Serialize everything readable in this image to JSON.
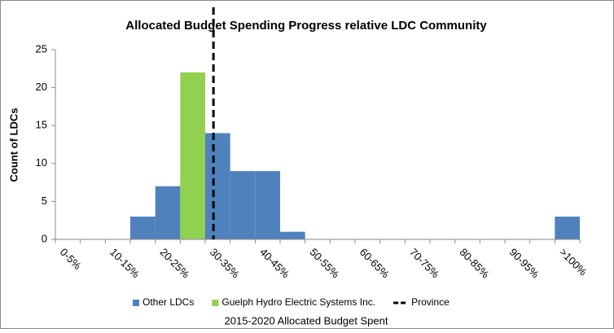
{
  "chart_data": {
    "type": "bar",
    "title": "Allocated Budget Spending Progress relative LDC Community",
    "x_label": "2015-2020 Allocated Budget Spent",
    "y_label": "Count of LDCs",
    "categories": [
      "0-5%",
      null,
      "10-15%",
      null,
      "20-25%",
      null,
      "30-35%",
      null,
      "40-45%",
      null,
      "50-55%",
      null,
      "60-65%",
      null,
      "70-75%",
      null,
      "80-85%",
      null,
      "90-95%",
      null,
      ">100%"
    ],
    "series": [
      {
        "name": "Other LDCs",
        "color": "#4f81bd",
        "values": [
          0,
          0,
          0,
          3,
          7,
          0,
          14,
          9,
          9,
          1,
          0,
          0,
          0,
          0,
          0,
          0,
          0,
          0,
          0,
          0,
          3
        ]
      },
      {
        "name": "Guelph Hydro Electric Systems Inc.",
        "color": "#92d050",
        "values": [
          null,
          null,
          null,
          null,
          null,
          22,
          null,
          null,
          null,
          null,
          null,
          null,
          null,
          null,
          null,
          null,
          null,
          null,
          null,
          null,
          null
        ]
      }
    ],
    "reference_line": {
      "name": "Province",
      "x": 6.33,
      "color": "#000000"
    },
    "ylim": [
      0,
      25
    ],
    "yticks": [
      0,
      5,
      10,
      15,
      20,
      25
    ],
    "grid": false,
    "legend": "bottom"
  }
}
